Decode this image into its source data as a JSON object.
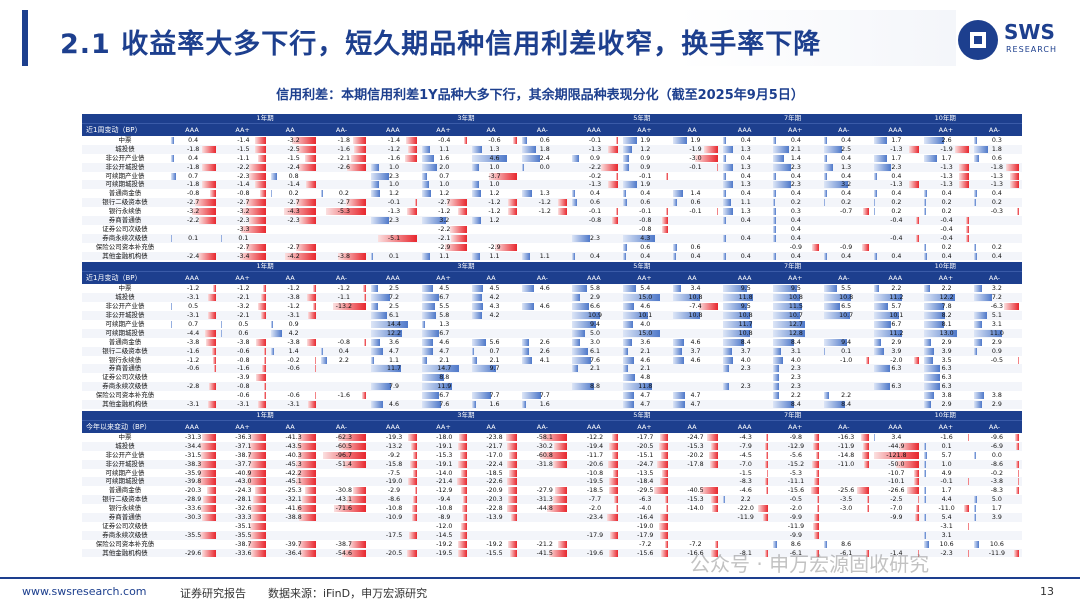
{
  "title": "2.1 收益率大多下行，短久期品种信用利差收窄，换手率下降",
  "logo": {
    "mark": "SWS",
    "sub": "RESEARCH"
  },
  "subtitle": "信用利差：本期信用利差1Y品种大多下行，其余期限品种表现分化（截至2025年9月5日）",
  "colors": {
    "navy": "#1d3f8e",
    "neg": "#e8262d",
    "pos": "#4e78c9"
  },
  "terms": [
    "1年期",
    "3年期",
    "5年期",
    "7年期",
    "10年期"
  ],
  "ratings": [
    "AAA",
    "AA+",
    "AA",
    "AA-"
  ],
  "rows": [
    "中票",
    "城投债",
    "非公开产业债",
    "非公开城投债",
    "可续期产业债",
    "可续期城投债",
    "普通商金债",
    "银行二级资本债",
    "银行永续债",
    "券商普通债",
    "证券公司次级债",
    "券商永续次级债",
    "保险公司资本补充债",
    "其他金融机构债"
  ],
  "sections": [
    {
      "label": "近1周变动（BP）",
      "scale": 6,
      "data": [
        [
          "0.4",
          "-1.4",
          "-3.2",
          "-1.8",
          "-1.4",
          "-0.4",
          "-0.6",
          "0.6",
          "-0.1",
          "1.9",
          "1.9",
          "0.4",
          "0.4",
          "0.4",
          "1.7",
          "2.6",
          "0.3"
        ],
        [
          "-1.8",
          "-1.5",
          "-2.5",
          "-1.6",
          "-1.2",
          "1.1",
          "1.3",
          "1.8",
          "-1.3",
          "1.2",
          "-1.9",
          "1.3",
          "2.1",
          "2.5",
          "-1.3",
          "-1.9",
          "1.8"
        ],
        [
          "0.4",
          "-1.1",
          "-1.5",
          "-2.1",
          "-1.6",
          "1.6",
          "4.6",
          "2.4",
          "0.9",
          "0.9",
          "-3.0",
          "0.4",
          "1.4",
          "0.4",
          "1.7",
          "1.7",
          "0.6"
        ],
        [
          "-1.8",
          "-2.2",
          "-2.4",
          "-2.6",
          "1.0",
          "2.0",
          "1.0",
          "0.0",
          "-2.2",
          "0.9",
          "-0.1",
          "1.3",
          "2.3",
          "1.3",
          "2.3",
          "-1.3",
          "-1.8"
        ],
        [
          "0.7",
          "-2.3",
          "0.8",
          "",
          "2.3",
          "0.7",
          "-3.7",
          "",
          "-0.2",
          "-0.1",
          "",
          "0.4",
          "0.4",
          "0.4",
          "0.4",
          "-1.3",
          "-1.3"
        ],
        [
          "-1.8",
          "-1.4",
          "-1.4",
          "",
          "1.0",
          "1.0",
          "1.0",
          "",
          "-1.3",
          "1.9",
          "",
          "1.3",
          "2.3",
          "3.2",
          "-1.3",
          "-1.3",
          "-1.3"
        ],
        [
          "-0.8",
          "-0.8",
          "0.2",
          "0.2",
          "1.2",
          "1.2",
          "1.2",
          "1.3",
          "0.4",
          "0.4",
          "1.4",
          "0.4",
          "0.4",
          "0.4",
          "0.4",
          "0.4",
          "0.4"
        ],
        [
          "-2.7",
          "-2.7",
          "-2.7",
          "-2.7",
          "-0.1",
          "-2.7",
          "-1.2",
          "-1.2",
          "0.6",
          "0.6",
          "0.6",
          "1.1",
          "0.2",
          "0.2",
          "0.2",
          "0.2",
          "0.2"
        ],
        [
          "-3.2",
          "-3.2",
          "-4.3",
          "-5.3",
          "-1.3",
          "-1.2",
          "-1.2",
          "-1.2",
          "-0.1",
          "-0.1",
          "-0.1",
          "1.3",
          "0.3",
          "-0.7",
          "0.2",
          "0.2",
          "-0.3"
        ],
        [
          "-2.2",
          "-2.3",
          "-2.3",
          "",
          "2.3",
          "3.2",
          "1.2",
          "",
          "-0.8",
          "-0.8",
          "",
          "0.4",
          "0.4",
          "",
          "-0.4",
          "-0.4",
          ""
        ],
        [
          "",
          "-3.3",
          "",
          "",
          "",
          "-2.2",
          "",
          "",
          "",
          "-0.8",
          "",
          "",
          "0.4",
          "",
          "",
          "-0.4",
          ""
        ],
        [
          "0.1",
          "0.1",
          "",
          "",
          "-5.1",
          "-2.1",
          "",
          "",
          "2.3",
          "4.3",
          "",
          "0.4",
          "0.4",
          "",
          "-0.4",
          "-0.4",
          ""
        ],
        [
          "",
          "-2.7",
          "-2.7",
          "",
          "",
          "-2.9",
          "-2.9",
          "",
          "",
          "0.6",
          "0.6",
          "",
          "-0.9",
          "-0.9",
          "",
          "0.2",
          "0.2"
        ],
        [
          "-2.4",
          "-3.4",
          "-4.2",
          "-3.8",
          "0.1",
          "1.1",
          "1.1",
          "1.1",
          "0.4",
          "0.4",
          "0.4",
          "0.4",
          "0.4",
          "0.4",
          "0.4",
          "0.4",
          "0.4"
        ]
      ]
    },
    {
      "label": "近1月变动（BP）",
      "scale": 18,
      "data": [
        [
          "-1.2",
          "-1.2",
          "-1.2",
          "-1.2",
          "2.5",
          "4.5",
          "4.5",
          "4.6",
          "5.8",
          "5.4",
          "3.4",
          "9.5",
          "9.5",
          "5.5",
          "2.2",
          "2.2",
          "3.2"
        ],
        [
          "-3.1",
          "-2.1",
          "-3.8",
          "-1.1",
          "7.2",
          "6.7",
          "4.2",
          "",
          "2.9",
          "15.0",
          "10.8",
          "11.8",
          "10.8",
          "10.8",
          "11.2",
          "12.2",
          "7.2"
        ],
        [
          "0.5",
          "-3.2",
          "-1.2",
          "-13.2",
          "2.5",
          "5.5",
          "4.3",
          "4.6",
          "6.6",
          "4.6",
          "-7.4",
          "9.5",
          "11.5",
          "6.5",
          "5.7",
          "7.8",
          "-6.3"
        ],
        [
          "-3.1",
          "-2.1",
          "-3.1",
          "",
          "6.1",
          "5.8",
          "4.2",
          "",
          "10.9",
          "10.1",
          "10.8",
          "10.8",
          "10.7",
          "10.7",
          "10.1",
          "8.2",
          "5.1"
        ],
        [
          "0.7",
          "0.5",
          "0.9",
          "",
          "14.4",
          "1.3",
          "",
          "",
          "9.4",
          "4.0",
          "",
          "11.7",
          "12.7",
          "",
          "6.7",
          "8.1",
          "3.1"
        ],
        [
          "-4.4",
          "0.6",
          "4.2",
          "",
          "12.2",
          "6.7",
          "",
          "",
          "5.0",
          "15.0",
          "",
          "10.8",
          "12.8",
          "",
          "11.2",
          "13.0",
          "11.0"
        ],
        [
          "-3.8",
          "-3.8",
          "-3.8",
          "-0.8",
          "3.6",
          "4.6",
          "5.6",
          "2.6",
          "3.0",
          "3.6",
          "4.6",
          "8.4",
          "8.4",
          "9.4",
          "2.9",
          "2.9",
          "2.9"
        ],
        [
          "-1.6",
          "-0.6",
          "1.4",
          "0.4",
          "4.7",
          "4.7",
          "0.7",
          "2.6",
          "6.1",
          "2.1",
          "3.7",
          "3.7",
          "3.1",
          "0.1",
          "3.9",
          "3.9",
          "0.9"
        ],
        [
          "-1.2",
          "-0.8",
          "-0.2",
          "2.2",
          "1.1",
          "2.1",
          "2.1",
          "4.1",
          "7.6",
          "4.6",
          "4.6",
          "4.0",
          "4.0",
          "-1.0",
          "-2.0",
          "3.5",
          "-0.5"
        ],
        [
          "-0.6",
          "-1.6",
          "-0.6",
          "",
          "11.7",
          "14.7",
          "9.7",
          "",
          "2.1",
          "2.1",
          "",
          "2.3",
          "2.3",
          "",
          "6.3",
          "6.3",
          ""
        ],
        [
          "",
          "-3.9",
          "",
          "",
          "",
          "8.8",
          "",
          "",
          "",
          "4.8",
          "",
          "",
          "2.3",
          "",
          "",
          "6.3",
          ""
        ],
        [
          "-2.8",
          "-0.8",
          "",
          "",
          "7.9",
          "11.9",
          "",
          "",
          "8.8",
          "11.8",
          "",
          "2.3",
          "2.3",
          "",
          "6.3",
          "6.3",
          ""
        ],
        [
          "",
          "-0.6",
          "-0.6",
          "-1.6",
          "",
          "6.7",
          "7.7",
          "7.7",
          "",
          "4.7",
          "4.7",
          "",
          "2.2",
          "2.2",
          "",
          "3.8",
          "3.8"
        ],
        [
          "-3.1",
          "-3.1",
          "-3.1",
          "",
          "4.6",
          "7.6",
          "1.6",
          "1.6",
          "",
          "4.7",
          "4.7",
          "",
          "8.4",
          "8.4",
          "",
          "2.9",
          "2.9"
        ]
      ]
    },
    {
      "label": "今年以来变动（BP）",
      "scale": 100,
      "data": [
        [
          "-31.3",
          "-36.3",
          "-41.3",
          "-62.3",
          "-19.3",
          "-18.0",
          "-23.8",
          "-58.1",
          "-12.2",
          "-17.7",
          "-24.7",
          "-4.3",
          "-9.8",
          "-16.3",
          "3.4",
          "-1.6",
          "-9.6"
        ],
        [
          "-34.4",
          "-37.1",
          "-43.5",
          "-60.5",
          "-13.2",
          "-19.1",
          "-21.7",
          "-30.2",
          "-19.4",
          "-20.5",
          "-15.3",
          "-7.9",
          "-12.9",
          "-11.9",
          "-44.9",
          "0.1",
          "-6.9"
        ],
        [
          "-31.5",
          "-38.7",
          "-40.3",
          "-96.7",
          "-9.2",
          "-15.3",
          "-17.0",
          "-60.8",
          "-11.7",
          "-15.1",
          "-20.2",
          "-4.5",
          "-5.6",
          "-14.8",
          "-121.8",
          "5.7",
          "0.0"
        ],
        [
          "-38.3",
          "-37.7",
          "-45.3",
          "-51.4",
          "-15.8",
          "-19.1",
          "-22.4",
          "-31.8",
          "-20.6",
          "-24.7",
          "-17.8",
          "-7.0",
          "-15.2",
          "-11.0",
          "-50.0",
          "1.0",
          "-8.6"
        ],
        [
          "-35.9",
          "-40.9",
          "-42.2",
          "",
          "-7.5",
          "-14.0",
          "-18.5",
          "",
          "-10.8",
          "-13.5",
          "",
          "-1.5",
          "-5.3",
          "",
          "-10.7",
          "4.9",
          "-0.2"
        ],
        [
          "-39.8",
          "-43.0",
          "-45.1",
          "",
          "-19.0",
          "-21.4",
          "-22.6",
          "",
          "-19.5",
          "-18.4",
          "",
          "-8.3",
          "-11.1",
          "",
          "-10.1",
          "-0.1",
          "-3.8"
        ],
        [
          "-20.3",
          "-24.3",
          "-25.3",
          "-30.8",
          "-2.9",
          "-12.9",
          "-20.9",
          "-27.9",
          "-18.5",
          "-29.5",
          "-40.5",
          "-4.6",
          "-15.6",
          "-25.6",
          "-26.6",
          "1.7",
          "-8.3"
        ],
        [
          "-28.9",
          "-28.1",
          "-32.1",
          "-43.1",
          "-8.6",
          "-9.4",
          "-20.3",
          "-31.3",
          "-7.7",
          "-6.3",
          "-15.3",
          "2.2",
          "-0.5",
          "-3.5",
          "-2.5",
          "4.4",
          "5.0"
        ],
        [
          "-33.6",
          "-32.6",
          "-41.6",
          "-71.6",
          "-10.8",
          "-10.8",
          "-22.8",
          "-44.8",
          "-2.0",
          "-4.0",
          "-14.0",
          "-22.0",
          "-2.0",
          "-3.0",
          "-7.0",
          "-11.0",
          "1.7"
        ],
        [
          "-30.3",
          "-33.3",
          "-38.8",
          "",
          "-10.9",
          "-8.9",
          "-13.9",
          "",
          "-23.4",
          "-16.4",
          "",
          "-11.9",
          "-9.9",
          "",
          "-9.9",
          "5.4",
          "3.9"
        ],
        [
          "",
          "-35.1",
          "",
          "",
          "",
          "-12.0",
          "",
          "",
          "",
          "-19.0",
          "",
          "",
          "-11.9",
          "",
          "",
          "-3.1",
          ""
        ],
        [
          "-35.5",
          "-35.5",
          "",
          "",
          "-17.5",
          "-14.5",
          "",
          "",
          "-17.9",
          "-17.9",
          "",
          "",
          "-9.9",
          "",
          "",
          "3.1",
          ""
        ],
        [
          "",
          "-38.7",
          "-39.7",
          "-38.7",
          "",
          "-19.2",
          "-19.2",
          "-21.2",
          "",
          "-7.2",
          "-7.2",
          "",
          "8.6",
          "8.6",
          "",
          "10.6",
          "10.6"
        ],
        [
          "-29.6",
          "-33.6",
          "-36.4",
          "-54.6",
          "-20.5",
          "-19.5",
          "-15.5",
          "-41.5",
          "-19.6",
          "-15.6",
          "-16.6",
          "-8.1",
          "-6.1",
          "-6.1",
          "-1.4",
          "-2.3",
          "-11.9"
        ]
      ]
    }
  ],
  "footer": {
    "url": "www.swsresearch.com",
    "report": "证券研究报告",
    "source": "数据来源：iFinD，申万宏源研究",
    "page": "13",
    "watermark": "公众号 · 申万宏源固收研究"
  }
}
